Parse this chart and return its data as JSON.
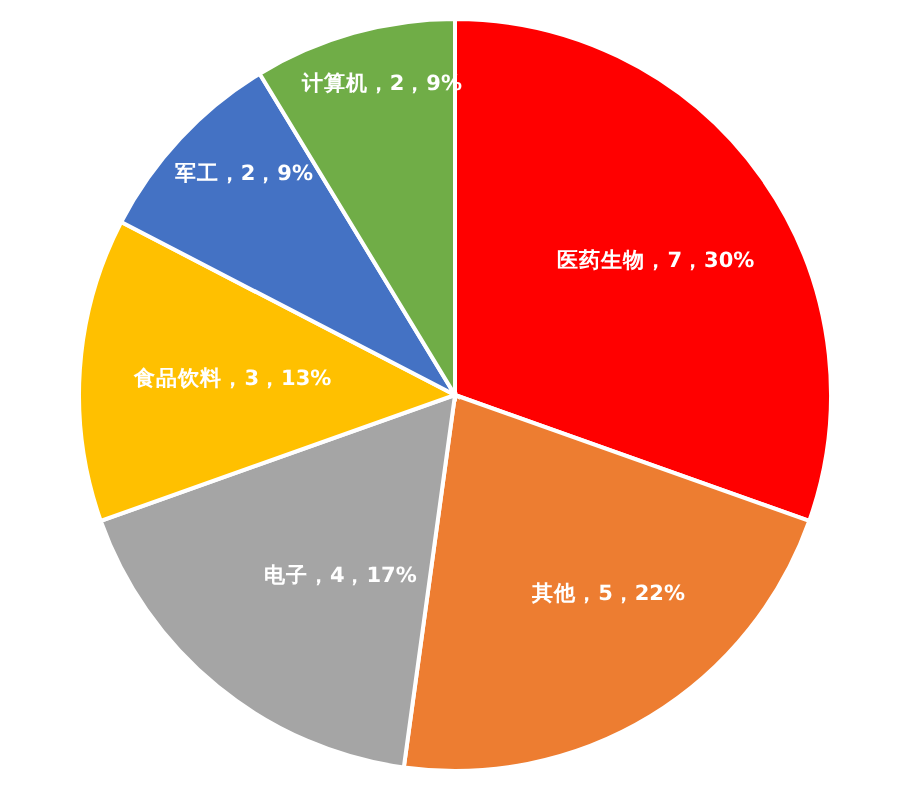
{
  "chart_data": {
    "type": "pie",
    "categories": [
      "医药生物",
      "其他",
      "电子",
      "食品饮料",
      "军工",
      "计算机"
    ],
    "values": [
      7,
      5,
      4,
      3,
      2,
      2
    ],
    "colors": [
      "#ff0000",
      "#ed7d31",
      "#a5a5a5",
      "#ffc000",
      "#4472c4",
      "#70ad47"
    ],
    "value_labels": [
      "，7，30%",
      "，5，22%",
      "，4，17%",
      "，3，13%",
      "，2，9%",
      "，2，9%"
    ]
  }
}
